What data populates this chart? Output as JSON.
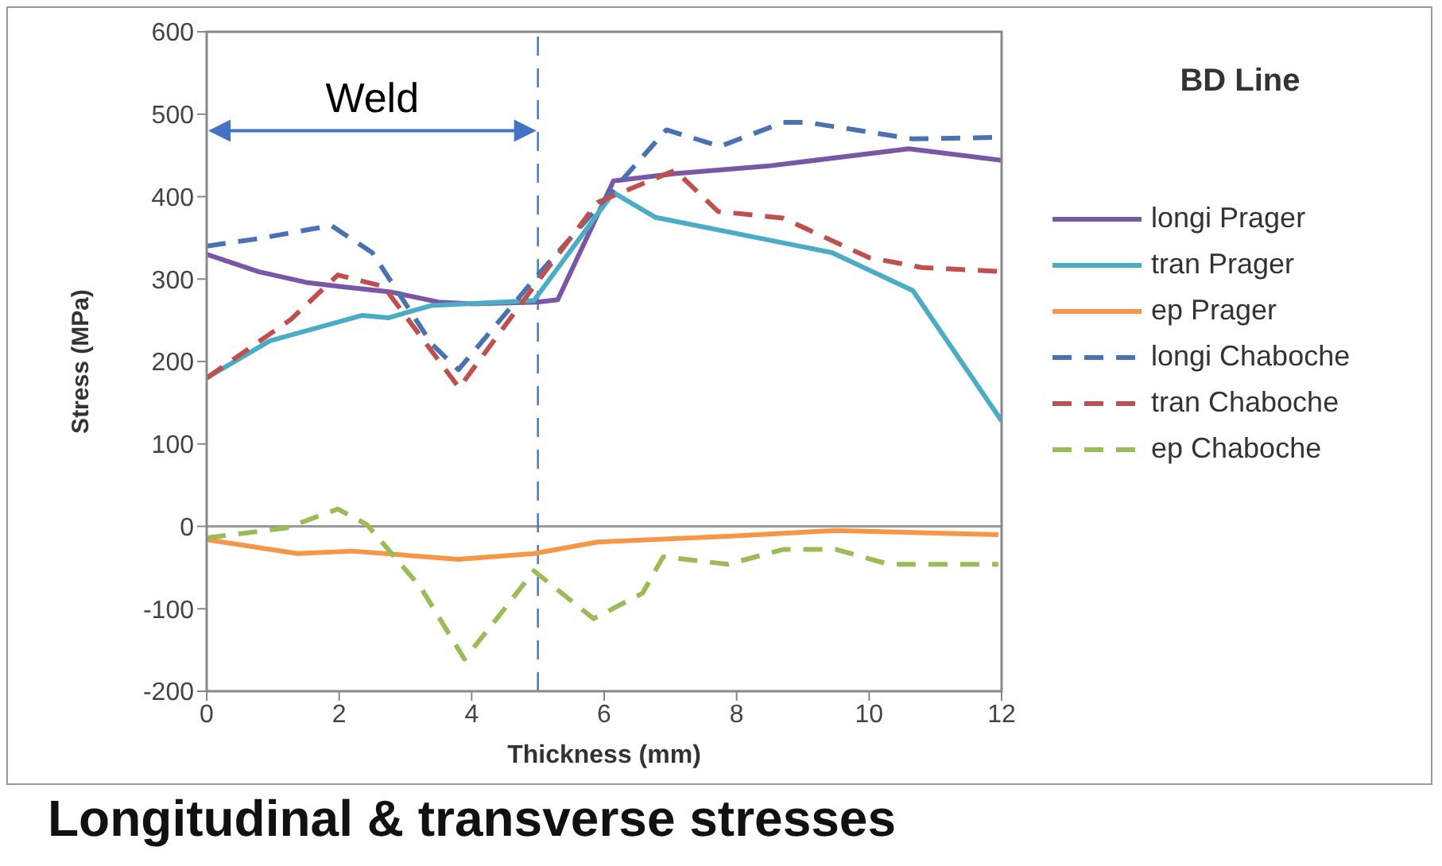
{
  "chart_data": {
    "type": "line",
    "xlabel": "Thickness (mm)",
    "ylabel": "Stress (MPa)",
    "legend_title": "BD Line",
    "legend": "right",
    "grid": false,
    "marker": "none",
    "xlim": [
      0,
      12
    ],
    "xticks": [
      0,
      2,
      4,
      6,
      8,
      10,
      12
    ],
    "ylim": [
      -200,
      600
    ],
    "yticks": [
      -200,
      -100,
      0,
      100,
      200,
      300,
      400,
      500,
      600
    ],
    "ref_lines": [
      {
        "axis": "x",
        "value": 5,
        "color": "#4472c4",
        "line_style": "dashed"
      },
      {
        "axis": "y",
        "value": 0,
        "color": "#999999",
        "line_style": "solid"
      }
    ],
    "annotations": [
      "Weld",
      "Longitudinal & transverse stresses"
    ],
    "series": [
      {
        "name": "longi Prager",
        "color": "#7a56a6",
        "line_style": "solid",
        "x": [
          0,
          0.78,
          1.5,
          2.0,
          2.8,
          3.5,
          4.0,
          5.0,
          5.3,
          6.14,
          7.07,
          8.46,
          10.6,
          12
        ],
        "values": [
          330,
          309,
          296,
          291,
          284,
          272,
          270,
          272,
          275,
          419,
          428,
          437,
          458,
          444
        ]
      },
      {
        "name": "tran Prager",
        "color": "#4bacc6",
        "line_style": "solid",
        "x": [
          0,
          0.95,
          2.35,
          2.74,
          3.4,
          4.94,
          6.14,
          6.77,
          9.44,
          10.66,
          12
        ],
        "values": [
          180,
          225,
          256,
          253,
          268,
          274,
          405,
          375,
          332,
          286,
          128
        ]
      },
      {
        "name": "ep Prager",
        "color": "#f79646",
        "line_style": "solid",
        "x": [
          0,
          1.37,
          2.2,
          3.8,
          4.94,
          5.9,
          7.87,
          9.5,
          11.95
        ],
        "values": [
          -16,
          -33,
          -30,
          -40,
          -33,
          -19,
          -12,
          -5,
          -10
        ]
      },
      {
        "name": "longi Chaboche",
        "color": "#4a72b0",
        "line_style": "dashed",
        "x": [
          0,
          0.78,
          1.88,
          2.5,
          3.4,
          3.8,
          5.0,
          6.94,
          7.75,
          8.7,
          9.07,
          10.66,
          12
        ],
        "values": [
          340,
          349,
          365,
          332,
          221,
          190,
          305,
          481,
          461,
          490,
          490,
          470,
          472
        ]
      },
      {
        "name": "tran Chaboche",
        "color": "#c0504d",
        "line_style": "dashed",
        "x": [
          0,
          1.27,
          1.98,
          2.67,
          3.81,
          4.94,
          5.9,
          7.07,
          7.72,
          8.7,
          10.0,
          10.8,
          12
        ],
        "values": [
          180,
          251,
          305,
          291,
          168,
          291,
          393,
          432,
          382,
          374,
          326,
          314,
          309
        ]
      },
      {
        "name": "ep Chaboche",
        "color": "#9bbb59",
        "line_style": "dashed",
        "x": [
          0,
          1.2,
          1.98,
          2.42,
          3.23,
          3.89,
          4.38,
          4.94,
          5.84,
          6.58,
          6.89,
          7.87,
          8.7,
          9.5,
          10.3,
          11.95
        ],
        "values": [
          -14,
          -2,
          21,
          2,
          -74,
          -161,
          -112,
          -54,
          -112,
          -81,
          -37,
          -46,
          -28,
          -28,
          -46,
          -46
        ]
      }
    ]
  }
}
